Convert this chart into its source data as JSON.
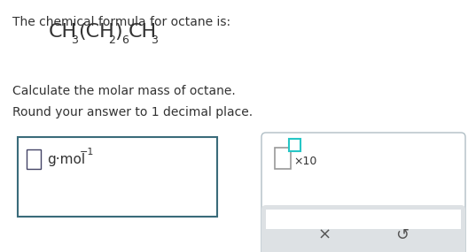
{
  "bg_color": "#ffffff",
  "text_color": "#333333",
  "gray_text": "#555555",
  "line1": "The chemical formula for octane is:",
  "calc_line": "Calculate the molar mass of octane.",
  "round_line": "Round your answer to 1 decimal place.",
  "units_mid": "g·mol",
  "units_exp": "−1",
  "box_border": "#3a6b7a",
  "panel_border": "#b0bec5",
  "teal_fill": "#26c6c6",
  "gray_area": "#dde1e4",
  "x_symbol": "×",
  "undo_symbol": "↺",
  "figw": 5.28,
  "figh": 2.85,
  "dpi": 100
}
